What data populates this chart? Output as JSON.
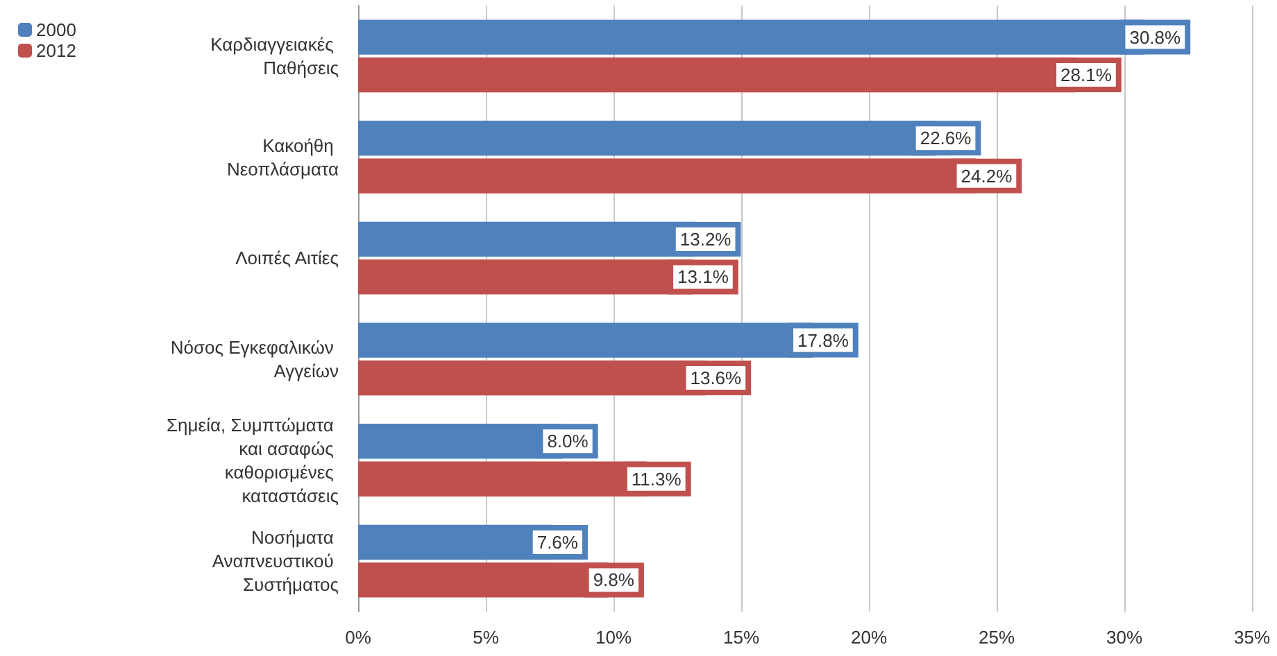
{
  "chart_data": {
    "type": "bar",
    "orientation": "horizontal",
    "categories": [
      "Καρδιαγγειακές Παθήσεις",
      "Κακοήθη Νεοπλάσματα",
      "Λοιπές Αιτίες",
      "Νόσος Εγκεφαλικών Αγγείων",
      "Σημεία, Συμπτώματα και ασαφώς καθορισμένες καταστάσεις",
      "Νοσήματα Αναπνευστικού Συστήματος"
    ],
    "series": [
      {
        "name": "2000",
        "color": "#4f81bd",
        "values": [
          30.8,
          22.6,
          13.2,
          17.8,
          8.0,
          7.6
        ],
        "value_labels": [
          "30.8%",
          "22.6%",
          "13.2%",
          "17.8%",
          "8.0%",
          "7.6%"
        ]
      },
      {
        "name": "2012",
        "color": "#c0504d",
        "values": [
          28.1,
          24.2,
          13.1,
          13.6,
          11.3,
          9.8
        ],
        "value_labels": [
          "28.1%",
          "24.2%",
          "13.1%",
          "13.6%",
          "11.3%",
          "9.8%"
        ]
      }
    ],
    "xlim": [
      0,
      35
    ],
    "xticks": [
      {
        "value": 0,
        "label": "0%"
      },
      {
        "value": 5,
        "label": "5%"
      },
      {
        "value": 10,
        "label": "10%"
      },
      {
        "value": 15,
        "label": "15%"
      },
      {
        "value": 20,
        "label": "20%"
      },
      {
        "value": 25,
        "label": "25%"
      },
      {
        "value": 30,
        "label": "30%"
      },
      {
        "value": 35,
        "label": "35%"
      }
    ],
    "grid": "x",
    "legend": "top left"
  }
}
